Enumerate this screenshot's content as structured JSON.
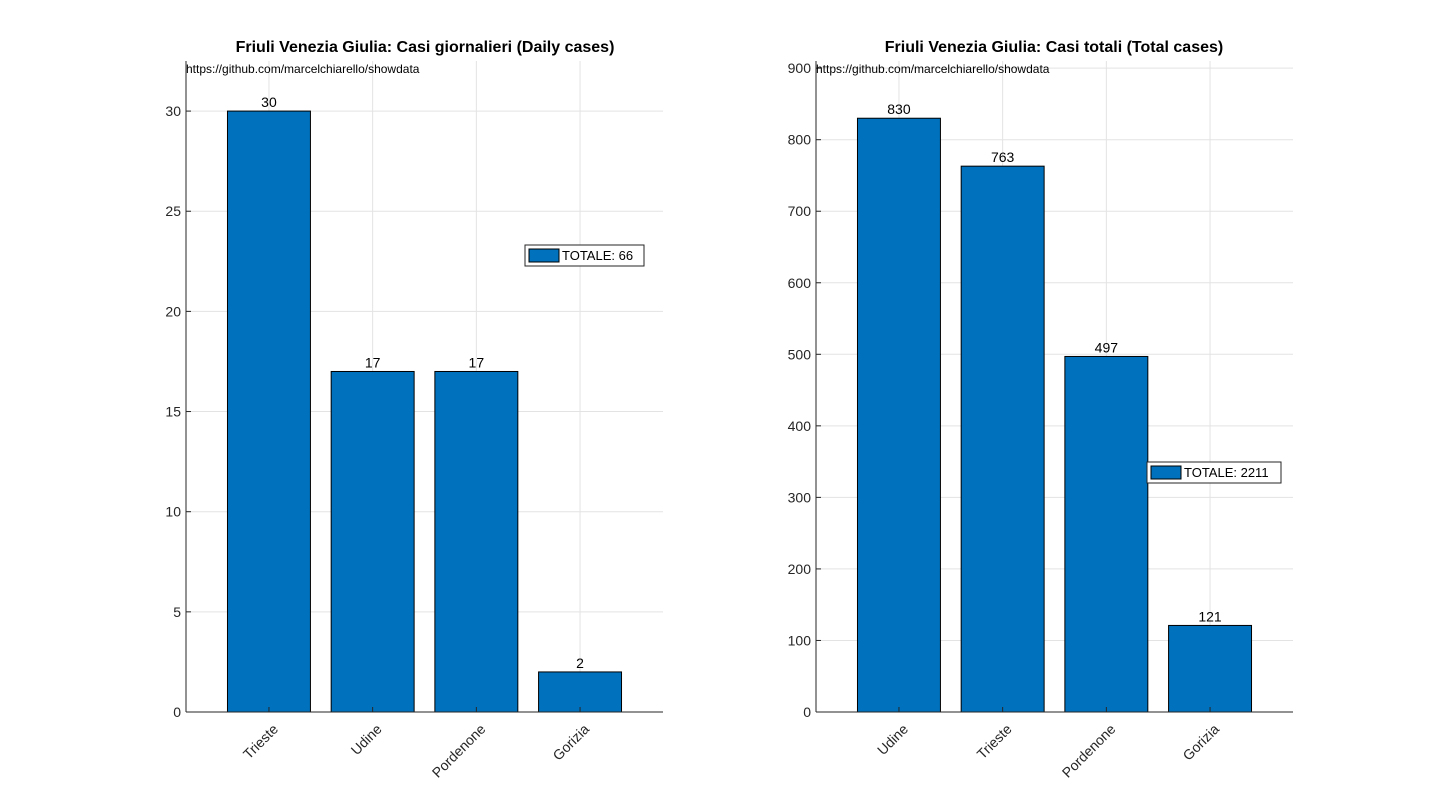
{
  "charts": [
    {
      "title": "Friuli Venezia Giulia: Casi giornalieri (Daily cases)",
      "source": "https://github.com/marcelchiarello/showdata",
      "legend": "TOTALE: 66"
    },
    {
      "title": "Friuli Venezia Giulia: Casi totali (Total cases)",
      "source": "https://github.com/marcelchiarello/showdata",
      "legend": "TOTALE: 2211"
    }
  ],
  "chart_data": [
    {
      "type": "bar",
      "title": "Friuli Venezia Giulia: Casi giornalieri (Daily cases)",
      "categories": [
        "Trieste",
        "Udine",
        "Pordenone",
        "Gorizia"
      ],
      "values": [
        30,
        17,
        17,
        2
      ],
      "series": [
        {
          "name": "TOTALE: 66",
          "values": [
            30,
            17,
            17,
            2
          ]
        }
      ],
      "ylim": [
        0,
        32.5
      ],
      "yticks": [
        0,
        5,
        10,
        15,
        20,
        25,
        30
      ],
      "xlabel": "",
      "ylabel": "",
      "grid": true,
      "legend_position": "right",
      "bar_color": "#0072BD"
    },
    {
      "type": "bar",
      "title": "Friuli Venezia Giulia: Casi totali (Total cases)",
      "categories": [
        "Udine",
        "Trieste",
        "Pordenone",
        "Gorizia"
      ],
      "values": [
        830,
        763,
        497,
        121
      ],
      "series": [
        {
          "name": "TOTALE: 2211",
          "values": [
            830,
            763,
            497,
            121
          ]
        }
      ],
      "ylim": [
        0,
        910
      ],
      "yticks": [
        0,
        100,
        200,
        300,
        400,
        500,
        600,
        700,
        800,
        900
      ],
      "xlabel": "",
      "ylabel": "",
      "grid": true,
      "legend_position": "right",
      "bar_color": "#0072BD"
    }
  ]
}
